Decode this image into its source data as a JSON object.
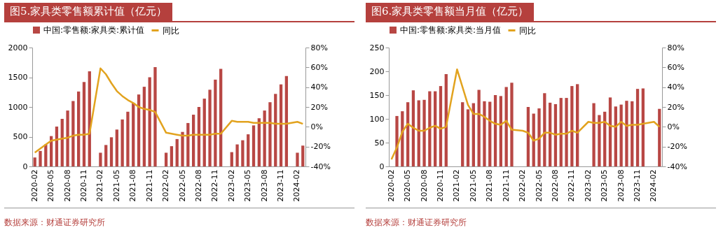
{
  "chart_data": [
    {
      "type": "bar",
      "title": "图5.家具类零售额累计值（亿元）",
      "categories": [
        "2020-02",
        null,
        null,
        "2020-05",
        null,
        null,
        "2020-08",
        null,
        null,
        "2020-11",
        null,
        null,
        "2021-02",
        null,
        null,
        "2021-05",
        null,
        null,
        "2021-08",
        null,
        null,
        "2021-11",
        null,
        null,
        "2022-02",
        null,
        null,
        "2022-05",
        null,
        null,
        "2022-08",
        null,
        null,
        "2022-11",
        null,
        null,
        "2023-02",
        null,
        null,
        "2023-05",
        null,
        null,
        "2023-08",
        null,
        null,
        "2023-11",
        null,
        null,
        "2024-02",
        null
      ],
      "series": [
        {
          "name": "中国:零售额:家具类:累计值",
          "color": "#b84744",
          "values": [
            150,
            260,
            370,
            510,
            670,
            800,
            940,
            1100,
            1260,
            1420,
            1600,
            null,
            230,
            360,
            490,
            620,
            790,
            920,
            1070,
            1210,
            1340,
            1500,
            1670,
            null,
            230,
            340,
            460,
            580,
            730,
            870,
            1000,
            1140,
            1290,
            1460,
            1640,
            null,
            240,
            370,
            440,
            540,
            690,
            810,
            940,
            1080,
            1220,
            1380,
            1520,
            null,
            230,
            350
          ]
        },
        {
          "name": "同比",
          "type": "line",
          "axis": "y2",
          "color": "#e2a31f",
          "values": [
            -26,
            -22,
            -18,
            -14,
            -13,
            -12,
            -11,
            -9,
            -8,
            -8,
            -7,
            null,
            59,
            53,
            44,
            36,
            31,
            27,
            24,
            20,
            18,
            17,
            15,
            null,
            -6,
            -7,
            -8,
            -9,
            -9,
            -8,
            -8,
            -8,
            -8,
            -7,
            -7,
            null,
            6,
            5,
            5,
            5,
            4,
            4,
            4,
            4,
            3,
            3,
            3,
            null,
            5,
            3
          ]
        }
      ],
      "ylim": [
        0,
        2000
      ],
      "yticks": [
        0,
        500,
        1000,
        1500,
        2000
      ],
      "y2lim": [
        -40,
        80
      ],
      "y2ticks": [
        {
          "value": -40,
          "label": "-40%"
        },
        {
          "value": -20,
          "label": "-20%"
        },
        {
          "value": 0,
          "label": "0%"
        },
        {
          "value": 20,
          "label": "20%"
        },
        {
          "value": 40,
          "label": "40%"
        },
        {
          "value": 60,
          "label": "60%"
        },
        {
          "value": 80,
          "label": "80%"
        }
      ],
      "legend": "top",
      "annotations": [
        "数据来源：财通证券研究所"
      ]
    },
    {
      "type": "bar",
      "title": "图6.家具类零售额当月值（亿元）",
      "categories": [
        "2020-02",
        null,
        null,
        "2020-05",
        null,
        null,
        "2020-08",
        null,
        null,
        "2020-11",
        null,
        null,
        "2021-02",
        null,
        null,
        "2021-05",
        null,
        null,
        "2021-08",
        null,
        null,
        "2021-11",
        null,
        null,
        "2022-02",
        null,
        null,
        "2022-05",
        null,
        null,
        "2022-08",
        null,
        null,
        "2022-11",
        null,
        null,
        "2023-02",
        null,
        null,
        "2023-05",
        null,
        null,
        "2023-08",
        null,
        null,
        "2023-11",
        null,
        null,
        "2024-02",
        null
      ],
      "series": [
        {
          "name": "中国:零售额:家具类:当月值",
          "color": "#b84744",
          "values": [
            null,
            106,
            116,
            135,
            160,
            139,
            140,
            158,
            158,
            169,
            194,
            null,
            null,
            135,
            120,
            133,
            161,
            137,
            136,
            150,
            148,
            167,
            176,
            null,
            null,
            125,
            111,
            122,
            154,
            134,
            131,
            144,
            144,
            169,
            173,
            null,
            null,
            133,
            108,
            115,
            145,
            126,
            130,
            138,
            137,
            163,
            164,
            null,
            null,
            121
          ]
        },
        {
          "name": "同比",
          "type": "line",
          "axis": "y2",
          "color": "#e2a31f",
          "values": [
            -33,
            -21,
            -5,
            3,
            -1,
            -4,
            -4,
            -1,
            1,
            -2,
            0,
            null,
            58,
            40,
            22,
            13,
            13,
            10,
            6,
            3,
            2,
            6,
            -3,
            null,
            -4,
            -6,
            -14,
            -12,
            -6,
            -6,
            -8,
            -7,
            -7,
            -4,
            -6,
            null,
            5,
            4,
            4,
            5,
            1,
            0,
            5,
            1,
            2,
            2,
            3,
            null,
            5,
            0
          ]
        }
      ],
      "ylim": [
        0,
        250
      ],
      "yticks": [
        0,
        50,
        100,
        150,
        200,
        250
      ],
      "y2lim": [
        -40,
        80
      ],
      "y2ticks": [
        {
          "value": -40,
          "label": "-40%"
        },
        {
          "value": -20,
          "label": "-20%"
        },
        {
          "value": 0,
          "label": "0%"
        },
        {
          "value": 20,
          "label": "20%"
        },
        {
          "value": 40,
          "label": "40%"
        },
        {
          "value": 60,
          "label": "60%"
        },
        {
          "value": 80,
          "label": "80%"
        }
      ],
      "legend": "top",
      "annotations": [
        "数据来源：财通证券研究所"
      ]
    }
  ]
}
